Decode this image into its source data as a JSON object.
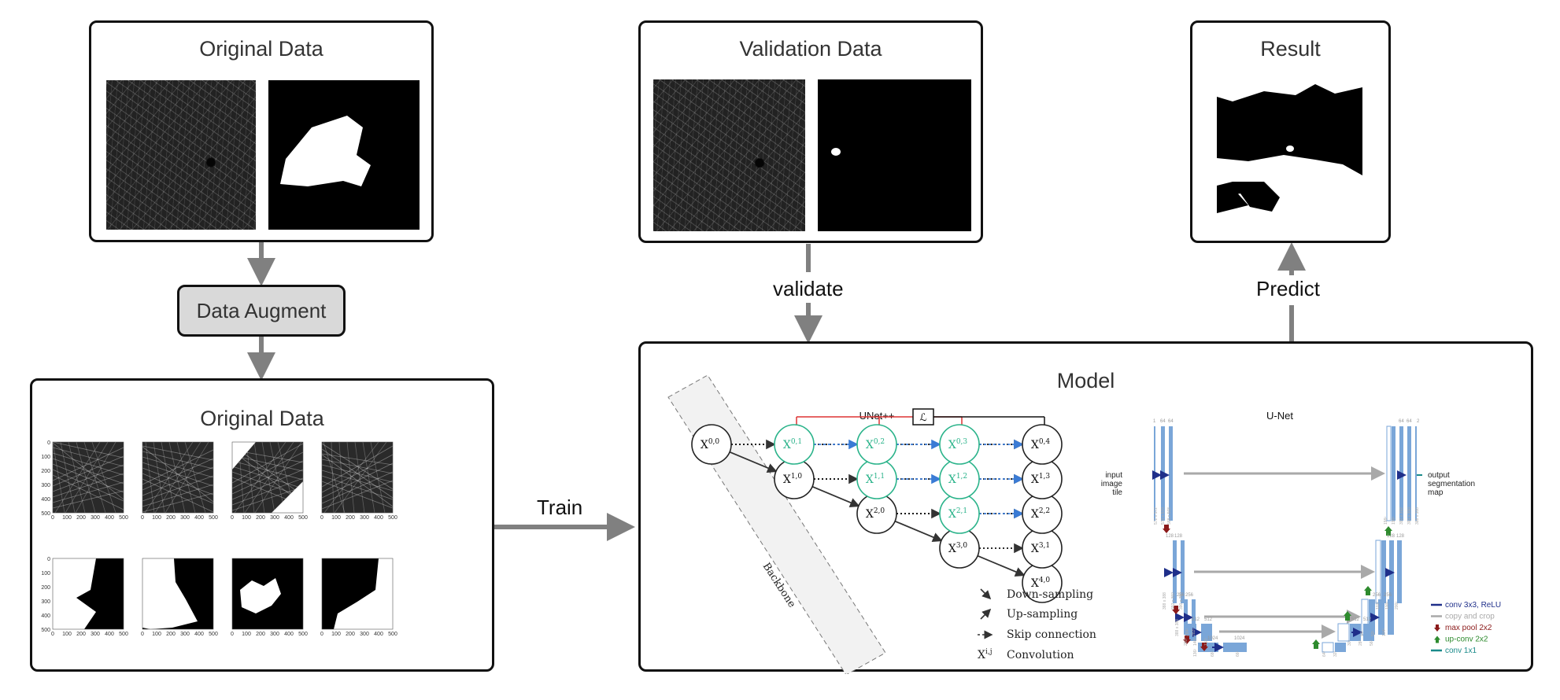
{
  "boxes": {
    "original_top": {
      "title": "Original Data"
    },
    "validation": {
      "title": "Validation Data"
    },
    "result": {
      "title": "Result"
    },
    "original_bottom": {
      "title": "Original Data"
    },
    "model": {
      "title": "Model"
    }
  },
  "process": {
    "augment": "Data Augment"
  },
  "edges": {
    "train": "Train",
    "validate": "validate",
    "predict": "Predict"
  },
  "plots": {
    "ticks": [
      "0",
      "100",
      "200",
      "300",
      "400",
      "500"
    ]
  },
  "unetpp": {
    "title": "UNet++",
    "loss": "ℒ",
    "backbone": "Backbone",
    "legend": [
      "Down-sampling",
      "Up-sampling",
      "Skip connection",
      "Convolution"
    ],
    "conv_symbol": "X",
    "conv_sup": "i,j",
    "nodes": [
      {
        "id": "0,0",
        "x": 0,
        "y": 0
      },
      {
        "id": "1,0",
        "x": 1,
        "y": 1
      },
      {
        "id": "2,0",
        "x": 2,
        "y": 2
      },
      {
        "id": "3,0",
        "x": 3,
        "y": 3
      },
      {
        "id": "4,0",
        "x": 4,
        "y": 4
      },
      {
        "id": "0,1",
        "x": 1,
        "y": 0,
        "nested": true
      },
      {
        "id": "1,1",
        "x": 2,
        "y": 1,
        "nested": true
      },
      {
        "id": "2,1",
        "x": 3,
        "y": 2,
        "nested": true
      },
      {
        "id": "3,1",
        "x": 4,
        "y": 3
      },
      {
        "id": "0,2",
        "x": 2,
        "y": 0,
        "nested": true
      },
      {
        "id": "1,2",
        "x": 3,
        "y": 1,
        "nested": true
      },
      {
        "id": "2,2",
        "x": 4,
        "y": 2
      },
      {
        "id": "0,3",
        "x": 3,
        "y": 0,
        "nested": true
      },
      {
        "id": "1,3",
        "x": 4,
        "y": 1
      },
      {
        "id": "0,4",
        "x": 4,
        "y": 0
      }
    ]
  },
  "unet": {
    "title": "U-Net",
    "input_label": [
      "input",
      "image",
      "tile"
    ],
    "output_label": [
      "output",
      "segmentation",
      "map"
    ],
    "channels": [
      "1",
      "64",
      "64",
      "128",
      "128",
      "256",
      "256",
      "512",
      "512",
      "1024",
      "1024",
      "512",
      "512",
      "256",
      "256",
      "128",
      "128",
      "64",
      "64",
      "2"
    ],
    "sizes": [
      "572 x 572",
      "570 x 570",
      "568 x 568",
      "388 x 388",
      "392 x 392",
      "390 x 390",
      "388 x 388",
      "284²",
      "282²",
      "280²",
      "140²",
      "138²",
      "136²",
      "68²",
      "66²",
      "64²",
      "32²",
      "30²",
      "28²",
      "56²",
      "54²",
      "52²",
      "104²",
      "102²",
      "100²",
      "200²",
      "198²",
      "196²",
      "392 x 392",
      "390 x 390",
      "388 x 388"
    ],
    "legend": [
      "conv 3x3, ReLU",
      "copy and crop",
      "max pool 2x2",
      "up-conv 2x2",
      "conv 1x1"
    ],
    "legend_colors": [
      "#1f2f8a",
      "#a9a9a9",
      "#8b1a1a",
      "#2e8b2e",
      "#1a8a8a"
    ]
  },
  "colors": {
    "nested": "#2ab38a",
    "skip": "#3a7bd5",
    "loss_line": "#d33",
    "arrow": "#808080",
    "block": "#7aa6d8"
  }
}
